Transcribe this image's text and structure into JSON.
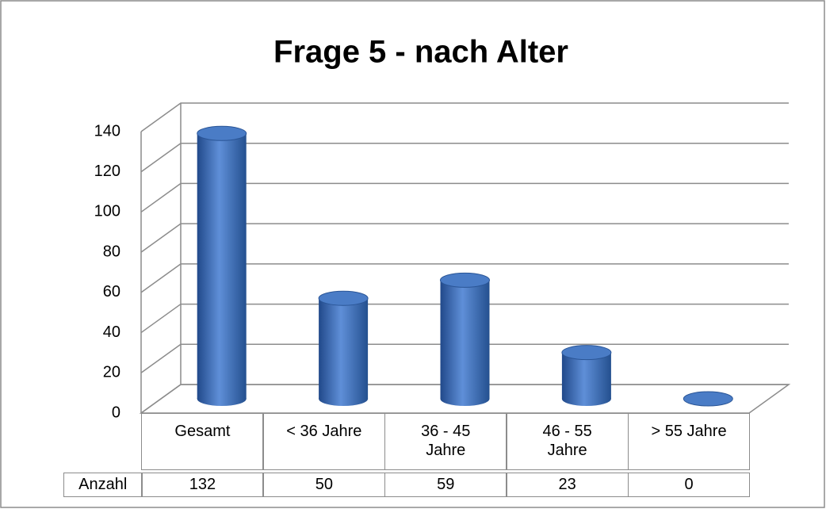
{
  "chart_data": {
    "type": "bar3d",
    "title": "Frage 5 - nach Alter",
    "categories": [
      "Gesamt",
      "< 36 Jahre",
      "36 - 45 Jahre",
      "46 - 55 Jahre",
      "> 55 Jahre"
    ],
    "series": [
      {
        "name": "Anzahl",
        "color": "#4a7cc6",
        "values": [
          132,
          50,
          59,
          23,
          0
        ]
      }
    ],
    "ylim": [
      0,
      140
    ],
    "yticks": [
      0,
      20,
      40,
      60,
      80,
      100,
      120,
      140
    ],
    "grid": true
  }
}
